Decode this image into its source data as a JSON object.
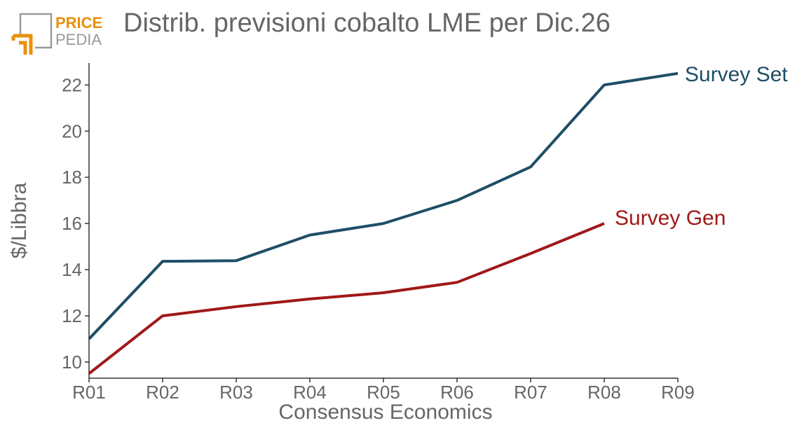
{
  "logo": {
    "line1": "PRICE",
    "line2": "PEDIA"
  },
  "colors": {
    "set": "#1f4e66",
    "gen": "#a01818",
    "logo_orange": "#e8900c",
    "logo_gray": "#999999"
  },
  "chart_data": {
    "type": "line",
    "title": "Distrib. previsioni cobalto LME per Dic.26",
    "xlabel": "Consensus Economics",
    "ylabel": "$/Libbra",
    "categories": [
      "R01",
      "R02",
      "R03",
      "R04",
      "R05",
      "R06",
      "R07",
      "R08",
      "R09"
    ],
    "ylim": [
      9.3,
      22.95
    ],
    "yticks": [
      10,
      12,
      14,
      16,
      18,
      20,
      22
    ],
    "grid": false,
    "series": [
      {
        "name": "Survey Set",
        "color": "#1f4e66",
        "values": [
          11.0,
          14.36,
          14.39,
          15.5,
          16.0,
          17.0,
          18.45,
          22.0,
          22.5
        ]
      },
      {
        "name": "Survey Gen",
        "color": "#a01818",
        "values": [
          9.5,
          12.0,
          12.4,
          12.73,
          13.0,
          13.45,
          14.7,
          16.0,
          null
        ]
      }
    ]
  }
}
